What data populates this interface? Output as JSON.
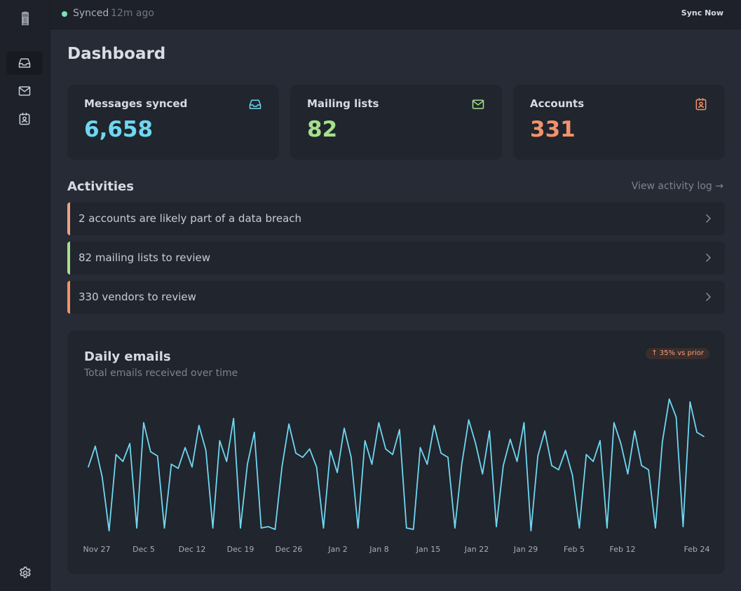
{
  "topbar": {
    "status": "Synced",
    "time": "12m ago",
    "sync_button": "Sync Now"
  },
  "sidebar": {
    "items": [
      {
        "icon": "inbox-icon",
        "active": true
      },
      {
        "icon": "mail-icon",
        "active": false
      },
      {
        "icon": "contact-card-icon",
        "active": false
      }
    ],
    "settings_icon": "gear-icon"
  },
  "page": {
    "title": "Dashboard"
  },
  "stats": [
    {
      "label": "Messages synced",
      "value": "6,658",
      "color": "#6fd7f2",
      "icon": "inbox-icon"
    },
    {
      "label": "Mailing lists",
      "value": "82",
      "color": "#a5e08c",
      "icon": "mail-icon"
    },
    {
      "label": "Accounts",
      "value": "331",
      "color": "#f3926b",
      "icon": "contact-card-icon"
    }
  ],
  "activities": {
    "title": "Activities",
    "view_log": "View activity log →",
    "items": [
      {
        "text": "2 accounts are likely part of a data breach",
        "color": "#f0a08a"
      },
      {
        "text": "82 mailing lists to review",
        "color": "#a5e08c"
      },
      {
        "text": "330 vendors to review",
        "color": "#f3926b"
      }
    ]
  },
  "chart": {
    "title": "Daily emails",
    "subtitle": "Total emails received over time",
    "badge": "↑ 35% vs prior"
  },
  "chart_data": {
    "type": "line",
    "title": "Daily emails",
    "subtitle": "Total emails received over time",
    "xlabel": "",
    "ylabel": "",
    "grid": false,
    "line_color": "#6fd7f2",
    "ylim": [
      0,
      100
    ],
    "x_ticks": [
      "Nov 27",
      "Dec 5",
      "Dec 12",
      "Dec 19",
      "Dec 26",
      "Jan 2",
      "Jan 8",
      "Jan 15",
      "Jan 22",
      "Jan 29",
      "Feb 5",
      "Feb 12",
      "Feb 24"
    ],
    "values": [
      46,
      61,
      39,
      0,
      55,
      50,
      63,
      2,
      78,
      57,
      54,
      2,
      48,
      45,
      60,
      46,
      76,
      58,
      2,
      65,
      50,
      81,
      2,
      48,
      71,
      2,
      3,
      1,
      46,
      77,
      56,
      53,
      59,
      46,
      2,
      58,
      42,
      74,
      53,
      2,
      65,
      48,
      78,
      59,
      55,
      73,
      2,
      1,
      60,
      48,
      76,
      56,
      53,
      2,
      48,
      80,
      63,
      41,
      72,
      3,
      47,
      66,
      50,
      78,
      0,
      54,
      72,
      47,
      44,
      58,
      40,
      2,
      55,
      50,
      65,
      2,
      78,
      63,
      41,
      72,
      47,
      44,
      2,
      64,
      95,
      82,
      3,
      93,
      71,
      68
    ]
  }
}
